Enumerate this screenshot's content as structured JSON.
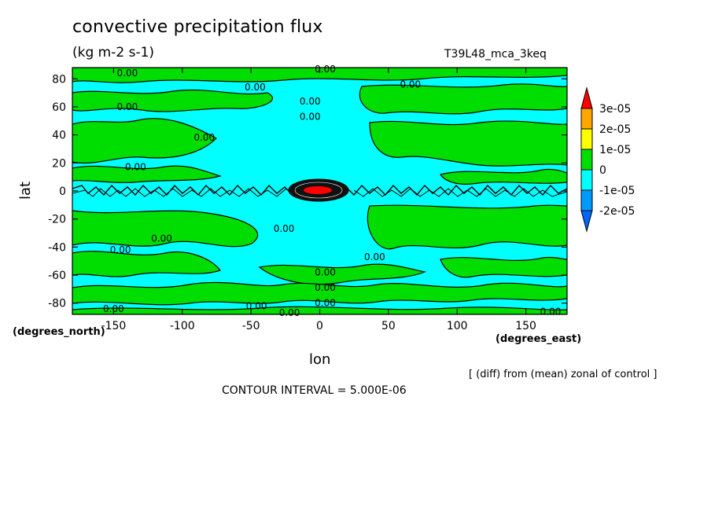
{
  "header": {
    "title": "convective precipitation flux",
    "units": "(kg m-2 s-1)",
    "run_label": "T39L48_mca_3keq"
  },
  "footer": {
    "note": "[ (diff) from (mean) zonal of control ]",
    "contour_interval": "CONTOUR INTERVAL = 5.000E-06"
  },
  "chart_data": {
    "type": "heatmap",
    "title": "convective precipitation flux",
    "subtitle": "(kg m-2 s-1)",
    "xlabel": "lon",
    "ylabel": "lat",
    "x_units": "(degrees_east)",
    "y_units": "(degrees_north)",
    "xlim": [
      -180,
      180
    ],
    "ylim": [
      -88,
      88
    ],
    "xticks": [
      -150,
      -100,
      -50,
      0,
      50,
      100,
      150
    ],
    "yticks": [
      -80,
      -60,
      -40,
      -20,
      0,
      20,
      40,
      60,
      80
    ],
    "xtick_labels": [
      "-150",
      "-100",
      "-50",
      "0",
      "50",
      "100",
      "150"
    ],
    "ytick_labels": [
      "-80",
      "-60",
      "-40",
      "-20",
      "0",
      "20",
      "40",
      "60",
      "80"
    ],
    "contour_interval": 5e-06,
    "legend": {
      "placement": "right",
      "labels": [
        "3e-05",
        "2e-05",
        "1e-05",
        "0",
        "-1e-05",
        "-2e-05"
      ],
      "bins": [
        {
          "range": [
            3e-05,
            null
          ],
          "color": "#ff0000"
        },
        {
          "range": [
            2e-05,
            3e-05
          ],
          "color": "#ffa500"
        },
        {
          "range": [
            1e-05,
            2e-05
          ],
          "color": "#ffff00"
        },
        {
          "range": [
            0,
            1e-05
          ],
          "color": "#00dd00"
        },
        {
          "range": [
            -1e-05,
            0
          ],
          "color": "#00ffff"
        },
        {
          "range": [
            -2e-05,
            -1e-05
          ],
          "color": "#0099ff"
        },
        {
          "range": [
            null,
            -2e-05
          ],
          "color": "#0066ff"
        }
      ]
    },
    "zero_contour_labels": [
      {
        "lon": -140,
        "lat": 84,
        "text": "0.00"
      },
      {
        "lon": 4,
        "lat": 87,
        "text": "0.00"
      },
      {
        "lon": -47,
        "lat": 74,
        "text": "0.00"
      },
      {
        "lon": -7,
        "lat": 64,
        "text": "0.00"
      },
      {
        "lon": -7,
        "lat": 53,
        "text": "0.00"
      },
      {
        "lon": 66,
        "lat": 76,
        "text": "0.00"
      },
      {
        "lon": -140,
        "lat": 60,
        "text": "0.00"
      },
      {
        "lon": -84,
        "lat": 38,
        "text": "0.00"
      },
      {
        "lon": -134,
        "lat": 17,
        "text": "0.00"
      },
      {
        "lon": -26,
        "lat": -27,
        "text": "0.00"
      },
      {
        "lon": -115,
        "lat": -34,
        "text": "0.00"
      },
      {
        "lon": -145,
        "lat": -42,
        "text": "0.00"
      },
      {
        "lon": 40,
        "lat": -47,
        "text": "0.00"
      },
      {
        "lon": 4,
        "lat": -58,
        "text": "0.00"
      },
      {
        "lon": 4,
        "lat": -69,
        "text": "0.00"
      },
      {
        "lon": 4,
        "lat": -80,
        "text": "0.00"
      },
      {
        "lon": -46,
        "lat": -82,
        "text": "0.00"
      },
      {
        "lon": -150,
        "lat": -84,
        "text": "0.00"
      },
      {
        "lon": -22,
        "lat": -87,
        "text": "0.00"
      },
      {
        "lon": 168,
        "lat": -86,
        "text": "0.00"
      }
    ],
    "positive_core": {
      "lon": [
        -20,
        20
      ],
      "lat": [
        -5,
        5
      ],
      "peak_lon": 0,
      "peak_lat": 0,
      "peak_bin": ">3e-05"
    }
  }
}
